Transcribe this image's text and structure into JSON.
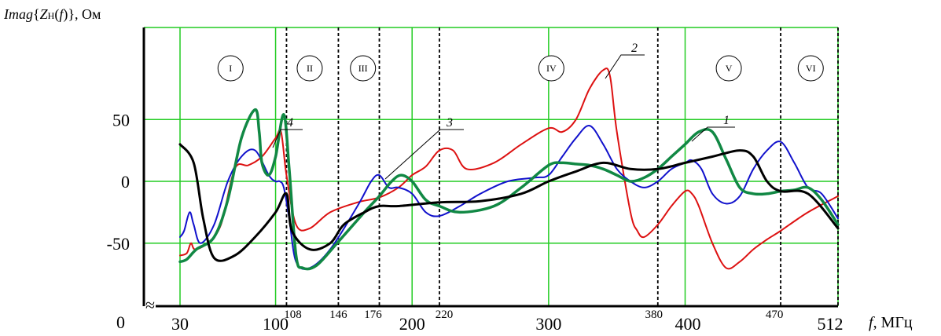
{
  "chart_data": {
    "type": "line",
    "ylabel_parts": [
      "Imag",
      "{",
      "Z",
      "Н",
      "(",
      "f",
      ")}, Ом"
    ],
    "xlabel_parts": [
      "f",
      ", МГц"
    ],
    "ylim": [
      -100,
      95
    ],
    "xlim": [
      30,
      512
    ],
    "y_ticks": [
      {
        "value": 50,
        "label": "50"
      },
      {
        "value": 0,
        "label": "0"
      },
      {
        "value": -50,
        "label": "-50"
      }
    ],
    "y_zero_label": "0",
    "axis_break_symbol": "≈",
    "x_ticks_main": [
      {
        "value": 30,
        "label": "30"
      },
      {
        "value": 100,
        "label": "100"
      },
      {
        "value": 200,
        "label": "200"
      },
      {
        "value": 300,
        "label": "300"
      },
      {
        "value": 400,
        "label": "400"
      },
      {
        "value": 512,
        "label": "512"
      }
    ],
    "x_ticks_band": [
      {
        "value": 108,
        "label": "108"
      },
      {
        "value": 146,
        "label": "146"
      },
      {
        "value": 176,
        "label": "176"
      },
      {
        "value": 220,
        "label": "220"
      },
      {
        "value": 380,
        "label": "380"
      },
      {
        "value": 470,
        "label": "470"
      }
    ],
    "grid_x": [
      30,
      100,
      200,
      300,
      400,
      512
    ],
    "grid_y": [
      50,
      0,
      -50
    ],
    "grid_color": "#22cc22",
    "bands": [
      {
        "label": "I",
        "center": 67
      },
      {
        "label": "II",
        "center": 125
      },
      {
        "label": "III",
        "center": 164
      },
      {
        "label": "IV",
        "center": 302
      },
      {
        "label": "V",
        "center": 432
      },
      {
        "label": "VI",
        "center": 492
      }
    ],
    "series": [
      {
        "name": "1",
        "color": "#000000",
        "width": 3,
        "x": [
          30,
          40,
          47,
          55,
          70,
          85,
          100,
          108,
          112,
          125,
          140,
          150,
          165,
          176,
          190,
          220,
          250,
          280,
          300,
          320,
          340,
          360,
          380,
          400,
          420,
          440,
          450,
          460,
          470,
          490,
          512
        ],
        "y": [
          30,
          15,
          -30,
          -62,
          -60,
          -45,
          -25,
          -10,
          -40,
          -55,
          -50,
          -35,
          -25,
          -20,
          -20,
          -17,
          -16,
          -10,
          0,
          8,
          15,
          10,
          10,
          15,
          20,
          25,
          20,
          0,
          -8,
          -10,
          -38
        ]
      },
      {
        "name": "2",
        "color": "#dd1111",
        "width": 2,
        "x": [
          30,
          35,
          38,
          41,
          50,
          60,
          70,
          80,
          90,
          100,
          104,
          108,
          115,
          125,
          140,
          160,
          176,
          190,
          200,
          210,
          220,
          230,
          240,
          260,
          280,
          300,
          310,
          320,
          330,
          340,
          345,
          350,
          360,
          365,
          370,
          380,
          390,
          400,
          405,
          410,
          420,
          430,
          440,
          450,
          460,
          470,
          490,
          512
        ],
        "y": [
          -60,
          -58,
          -50,
          -55,
          -50,
          -35,
          10,
          13,
          20,
          35,
          40,
          5,
          -35,
          -38,
          -25,
          -17,
          -13,
          -5,
          5,
          12,
          25,
          25,
          10,
          15,
          30,
          43,
          40,
          50,
          75,
          90,
          85,
          40,
          -25,
          -40,
          -45,
          -35,
          -20,
          -8,
          -10,
          -20,
          -50,
          -70,
          -65,
          -55,
          -47,
          -40,
          -25,
          -12
        ]
      },
      {
        "name": "3",
        "color": "#1111cc",
        "width": 2,
        "x": [
          30,
          33,
          37,
          40,
          45,
          55,
          65,
          75,
          85,
          95,
          100,
          103,
          106,
          110,
          115,
          125,
          140,
          160,
          170,
          176,
          183,
          190,
          200,
          210,
          220,
          235,
          250,
          270,
          290,
          300,
          310,
          320,
          330,
          340,
          350,
          360,
          370,
          380,
          390,
          400,
          405,
          412,
          420,
          430,
          440,
          450,
          460,
          470,
          480,
          490,
          500,
          512
        ],
        "y": [
          -45,
          -40,
          -25,
          -35,
          -50,
          -35,
          0,
          20,
          25,
          5,
          0,
          0,
          -5,
          -30,
          -65,
          -70,
          -55,
          -20,
          0,
          5,
          -5,
          -5,
          -10,
          -25,
          -28,
          -20,
          -10,
          0,
          3,
          5,
          20,
          35,
          45,
          30,
          10,
          0,
          -5,
          0,
          10,
          15,
          17,
          10,
          -10,
          -18,
          -12,
          10,
          25,
          32,
          15,
          -5,
          -10,
          -30
        ]
      },
      {
        "name": "4",
        "color": "#118844",
        "width": 3.5,
        "x": [
          30,
          35,
          42,
          55,
          65,
          75,
          85,
          88,
          90,
          95,
          100,
          106,
          110,
          115,
          120,
          130,
          145,
          165,
          176,
          185,
          192,
          200,
          210,
          220,
          235,
          260,
          280,
          300,
          310,
          320,
          330,
          340,
          350,
          360,
          370,
          380,
          390,
          400,
          410,
          420,
          430,
          440,
          450,
          460,
          470,
          480,
          490,
          500,
          512
        ],
        "y": [
          -65,
          -63,
          -55,
          -45,
          -15,
          35,
          58,
          40,
          15,
          5,
          20,
          54,
          10,
          -60,
          -70,
          -68,
          -50,
          -25,
          -12,
          0,
          5,
          0,
          -15,
          -20,
          -25,
          -20,
          -5,
          13,
          15,
          14,
          13,
          10,
          5,
          0,
          3,
          10,
          20,
          30,
          40,
          40,
          18,
          -5,
          -10,
          -10,
          -8,
          -7,
          -5,
          -15,
          -35
        ]
      }
    ],
    "curve_labels": [
      {
        "label": "1",
        "series": "1"
      },
      {
        "label": "2",
        "series": "2"
      },
      {
        "label": "3",
        "series": "3"
      },
      {
        "label": "4",
        "series": "4"
      }
    ]
  }
}
